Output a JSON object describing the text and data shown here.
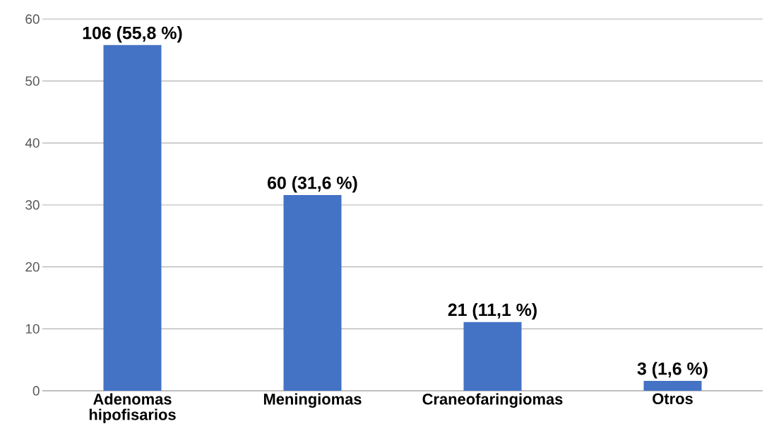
{
  "chart_data": {
    "type": "bar",
    "categories": [
      "Adenomas hipofisarios",
      "Meningiomas",
      "Craneofaringiomas",
      "Otros"
    ],
    "values": [
      55.8,
      31.6,
      11.1,
      1.6
    ],
    "value_labels": [
      "106 (55,8 %)",
      "60 (31,6 %)",
      "21 (11,1 %)",
      "3 (1,6 %)"
    ],
    "color": "#4472c4",
    "ylim": [
      0,
      60
    ],
    "yticks": [
      0,
      10,
      20,
      30,
      40,
      50,
      60
    ],
    "grid": "y"
  }
}
